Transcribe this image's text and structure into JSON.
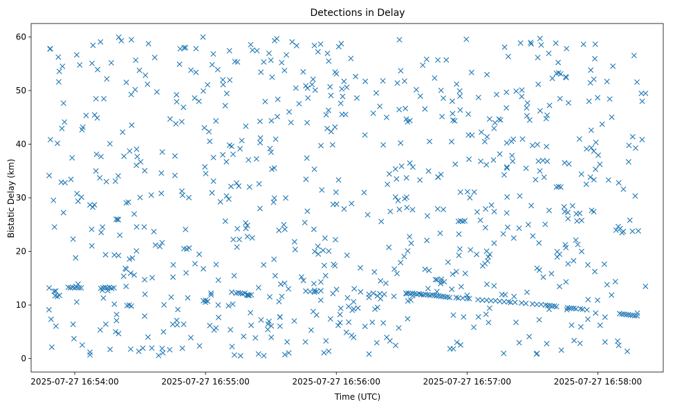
{
  "chart_data": {
    "type": "scatter",
    "title": "Detections in Delay",
    "xlabel": "Time (UTC)",
    "ylabel": "Bistatic Delay (km)",
    "x_range": [
      "2025-07-27 16:53:40",
      "2025-07-27 16:58:30"
    ],
    "ylim": [
      -2.5,
      62.5
    ],
    "x_ticks": [
      {
        "t": "2025-07-27 16:54:00",
        "label": "2025-07-27 16:54:00"
      },
      {
        "t": "2025-07-27 16:55:00",
        "label": "2025-07-27 16:55:00"
      },
      {
        "t": "2025-07-27 16:56:00",
        "label": "2025-07-27 16:56:00"
      },
      {
        "t": "2025-07-27 16:57:00",
        "label": "2025-07-27 16:57:00"
      },
      {
        "t": "2025-07-27 16:58:00",
        "label": "2025-07-27 16:58:00"
      }
    ],
    "y_ticks": [
      0,
      10,
      20,
      30,
      40,
      50,
      60
    ],
    "grid": false,
    "legend": "none",
    "marker": "x",
    "color": "#1f77b4",
    "track_points": [
      [
        "2025-07-27 16:53:51",
        11.7
      ],
      [
        "2025-07-27 16:53:52",
        11.6
      ],
      [
        "2025-07-27 16:53:53",
        11.8
      ],
      [
        "2025-07-27 16:53:57",
        13.3
      ],
      [
        "2025-07-27 16:53:58",
        13.2
      ],
      [
        "2025-07-27 16:53:59",
        13.3
      ],
      [
        "2025-07-27 16:54:00",
        13.2
      ],
      [
        "2025-07-27 16:54:01",
        13.3
      ],
      [
        "2025-07-27 16:54:02",
        13.2
      ],
      [
        "2025-07-27 16:54:03",
        13.2
      ],
      [
        "2025-07-27 16:54:12",
        13.1
      ],
      [
        "2025-07-27 16:54:13",
        13.2
      ],
      [
        "2025-07-27 16:54:14",
        13.3
      ],
      [
        "2025-07-27 16:54:15",
        13.2
      ],
      [
        "2025-07-27 16:54:16",
        13.3
      ],
      [
        "2025-07-27 16:54:17",
        13.1
      ],
      [
        "2025-07-27 16:54:18",
        13.2
      ],
      [
        "2025-07-27 16:54:24",
        9.9
      ],
      [
        "2025-07-27 16:54:25",
        10.0
      ],
      [
        "2025-07-27 16:54:26",
        9.8
      ],
      [
        "2025-07-27 16:54:45",
        6.4
      ],
      [
        "2025-07-27 16:54:47",
        6.3
      ],
      [
        "2025-07-27 16:54:50",
        6.4
      ],
      [
        "2025-07-27 16:54:59",
        10.8
      ],
      [
        "2025-07-27 16:55:00",
        10.9
      ],
      [
        "2025-07-27 16:55:01",
        10.7
      ],
      [
        "2025-07-27 16:55:12",
        12.4
      ],
      [
        "2025-07-27 16:55:14",
        12.2
      ],
      [
        "2025-07-27 16:55:15",
        12.3
      ],
      [
        "2025-07-27 16:55:16",
        12.2
      ],
      [
        "2025-07-27 16:55:17",
        12.1
      ],
      [
        "2025-07-27 16:55:18",
        12.2
      ],
      [
        "2025-07-27 16:55:19",
        11.9
      ],
      [
        "2025-07-27 16:55:20",
        11.8
      ],
      [
        "2025-07-27 16:55:21",
        11.9
      ],
      [
        "2025-07-27 16:55:46",
        12.6
      ],
      [
        "2025-07-27 16:55:48",
        12.5
      ],
      [
        "2025-07-27 16:55:50",
        12.4
      ],
      [
        "2025-07-27 16:55:51",
        12.5
      ],
      [
        "2025-07-27 16:56:15",
        12.0
      ],
      [
        "2025-07-27 16:56:17",
        12.2
      ],
      [
        "2025-07-27 16:56:20",
        12.1
      ],
      [
        "2025-07-27 16:56:22",
        12.0
      ],
      [
        "2025-07-27 16:56:32",
        12.2
      ],
      [
        "2025-07-27 16:56:33",
        12.2
      ],
      [
        "2025-07-27 16:56:34",
        12.1
      ],
      [
        "2025-07-27 16:56:35",
        12.2
      ],
      [
        "2025-07-27 16:56:36",
        12.1
      ],
      [
        "2025-07-27 16:56:37",
        12.0
      ],
      [
        "2025-07-27 16:56:38",
        12.1
      ],
      [
        "2025-07-27 16:56:39",
        12.0
      ],
      [
        "2025-07-27 16:56:40",
        11.9
      ],
      [
        "2025-07-27 16:56:41",
        12.0
      ],
      [
        "2025-07-27 16:56:42",
        11.9
      ],
      [
        "2025-07-27 16:56:43",
        11.8
      ],
      [
        "2025-07-27 16:56:44",
        11.9
      ],
      [
        "2025-07-27 16:56:45",
        11.8
      ],
      [
        "2025-07-27 16:56:46",
        11.7
      ],
      [
        "2025-07-27 16:56:47",
        11.7
      ],
      [
        "2025-07-27 16:56:48",
        11.6
      ],
      [
        "2025-07-27 16:56:49",
        11.6
      ],
      [
        "2025-07-27 16:56:50",
        11.5
      ],
      [
        "2025-07-27 16:56:51",
        11.5
      ],
      [
        "2025-07-27 16:56:52",
        11.4
      ],
      [
        "2025-07-27 16:56:55",
        11.4
      ],
      [
        "2025-07-27 16:56:56",
        11.3
      ],
      [
        "2025-07-27 16:56:58",
        11.3
      ],
      [
        "2025-07-27 16:57:00",
        11.2
      ],
      [
        "2025-07-27 16:57:01",
        11.2
      ],
      [
        "2025-07-27 16:57:05",
        11.0
      ],
      [
        "2025-07-27 16:57:07",
        10.9
      ],
      [
        "2025-07-27 16:57:09",
        10.9
      ],
      [
        "2025-07-27 16:57:11",
        10.8
      ],
      [
        "2025-07-27 16:57:13",
        10.8
      ],
      [
        "2025-07-27 16:57:15",
        10.7
      ],
      [
        "2025-07-27 16:57:17",
        10.6
      ],
      [
        "2025-07-27 16:57:19",
        10.6
      ],
      [
        "2025-07-27 16:57:20",
        10.5
      ],
      [
        "2025-07-27 16:57:22",
        10.5
      ],
      [
        "2025-07-27 16:57:25",
        10.4
      ],
      [
        "2025-07-27 16:57:27",
        10.3
      ],
      [
        "2025-07-27 16:57:30",
        10.2
      ],
      [
        "2025-07-27 16:57:32",
        10.1
      ],
      [
        "2025-07-27 16:57:34",
        10.1
      ],
      [
        "2025-07-27 16:57:36",
        10.0
      ],
      [
        "2025-07-27 16:57:37",
        9.9
      ],
      [
        "2025-07-27 16:57:38",
        9.9
      ],
      [
        "2025-07-27 16:57:39",
        9.8
      ],
      [
        "2025-07-27 16:57:40",
        9.8
      ],
      [
        "2025-07-27 16:57:41",
        9.7
      ],
      [
        "2025-07-27 16:57:46",
        9.5
      ],
      [
        "2025-07-27 16:57:47",
        9.4
      ],
      [
        "2025-07-27 16:57:48",
        9.4
      ],
      [
        "2025-07-27 16:57:49",
        9.4
      ],
      [
        "2025-07-27 16:57:50",
        9.3
      ],
      [
        "2025-07-27 16:57:52",
        9.3
      ],
      [
        "2025-07-27 16:57:53",
        9.2
      ],
      [
        "2025-07-27 16:57:55",
        9.1
      ],
      [
        "2025-07-27 16:58:10",
        8.4
      ],
      [
        "2025-07-27 16:58:11",
        8.3
      ],
      [
        "2025-07-27 16:58:12",
        8.3
      ],
      [
        "2025-07-27 16:58:13",
        8.2
      ],
      [
        "2025-07-27 16:58:14",
        8.2
      ],
      [
        "2025-07-27 16:58:15",
        8.1
      ],
      [
        "2025-07-27 16:58:16",
        8.1
      ],
      [
        "2025-07-27 16:58:17",
        8.0
      ],
      [
        "2025-07-27 16:58:18",
        8.0
      ]
    ],
    "clusters": [
      [
        "2025-07-27 16:56:56",
        25.6
      ],
      [
        "2025-07-27 16:56:57",
        25.7
      ],
      [
        "2025-07-27 16:56:58",
        25.6
      ],
      [
        "2025-07-27 16:56:59",
        25.7
      ],
      [
        "2025-07-27 16:57:41",
        32.0
      ],
      [
        "2025-07-27 16:57:42",
        32.1
      ],
      [
        "2025-07-27 16:57:43",
        32.0
      ],
      [
        "2025-07-27 16:57:41",
        53.2
      ],
      [
        "2025-07-27 16:57:42",
        53.3
      ],
      [
        "2025-07-27 16:57:43",
        53.1
      ],
      [
        "2025-07-27 16:54:07",
        1.2
      ],
      [
        "2025-07-27 16:54:07",
        0.7
      ],
      [
        "2025-07-27 16:54:19",
        26.0
      ],
      [
        "2025-07-27 16:54:20",
        25.9
      ],
      [
        "2025-07-27 16:54:55",
        48.6
      ],
      [
        "2025-07-27 16:54:57",
        48.0
      ],
      [
        "2025-07-27 16:54:59",
        49.9
      ],
      [
        "2025-07-27 16:55:11",
        39.8
      ],
      [
        "2025-07-27 16:55:12",
        39.6
      ]
    ],
    "scattered_points": {
      "count": 760,
      "time_span": [
        "2025-07-27 16:53:48",
        "2025-07-27 16:58:22"
      ],
      "delay_span": [
        0.5,
        60.0
      ]
    }
  }
}
